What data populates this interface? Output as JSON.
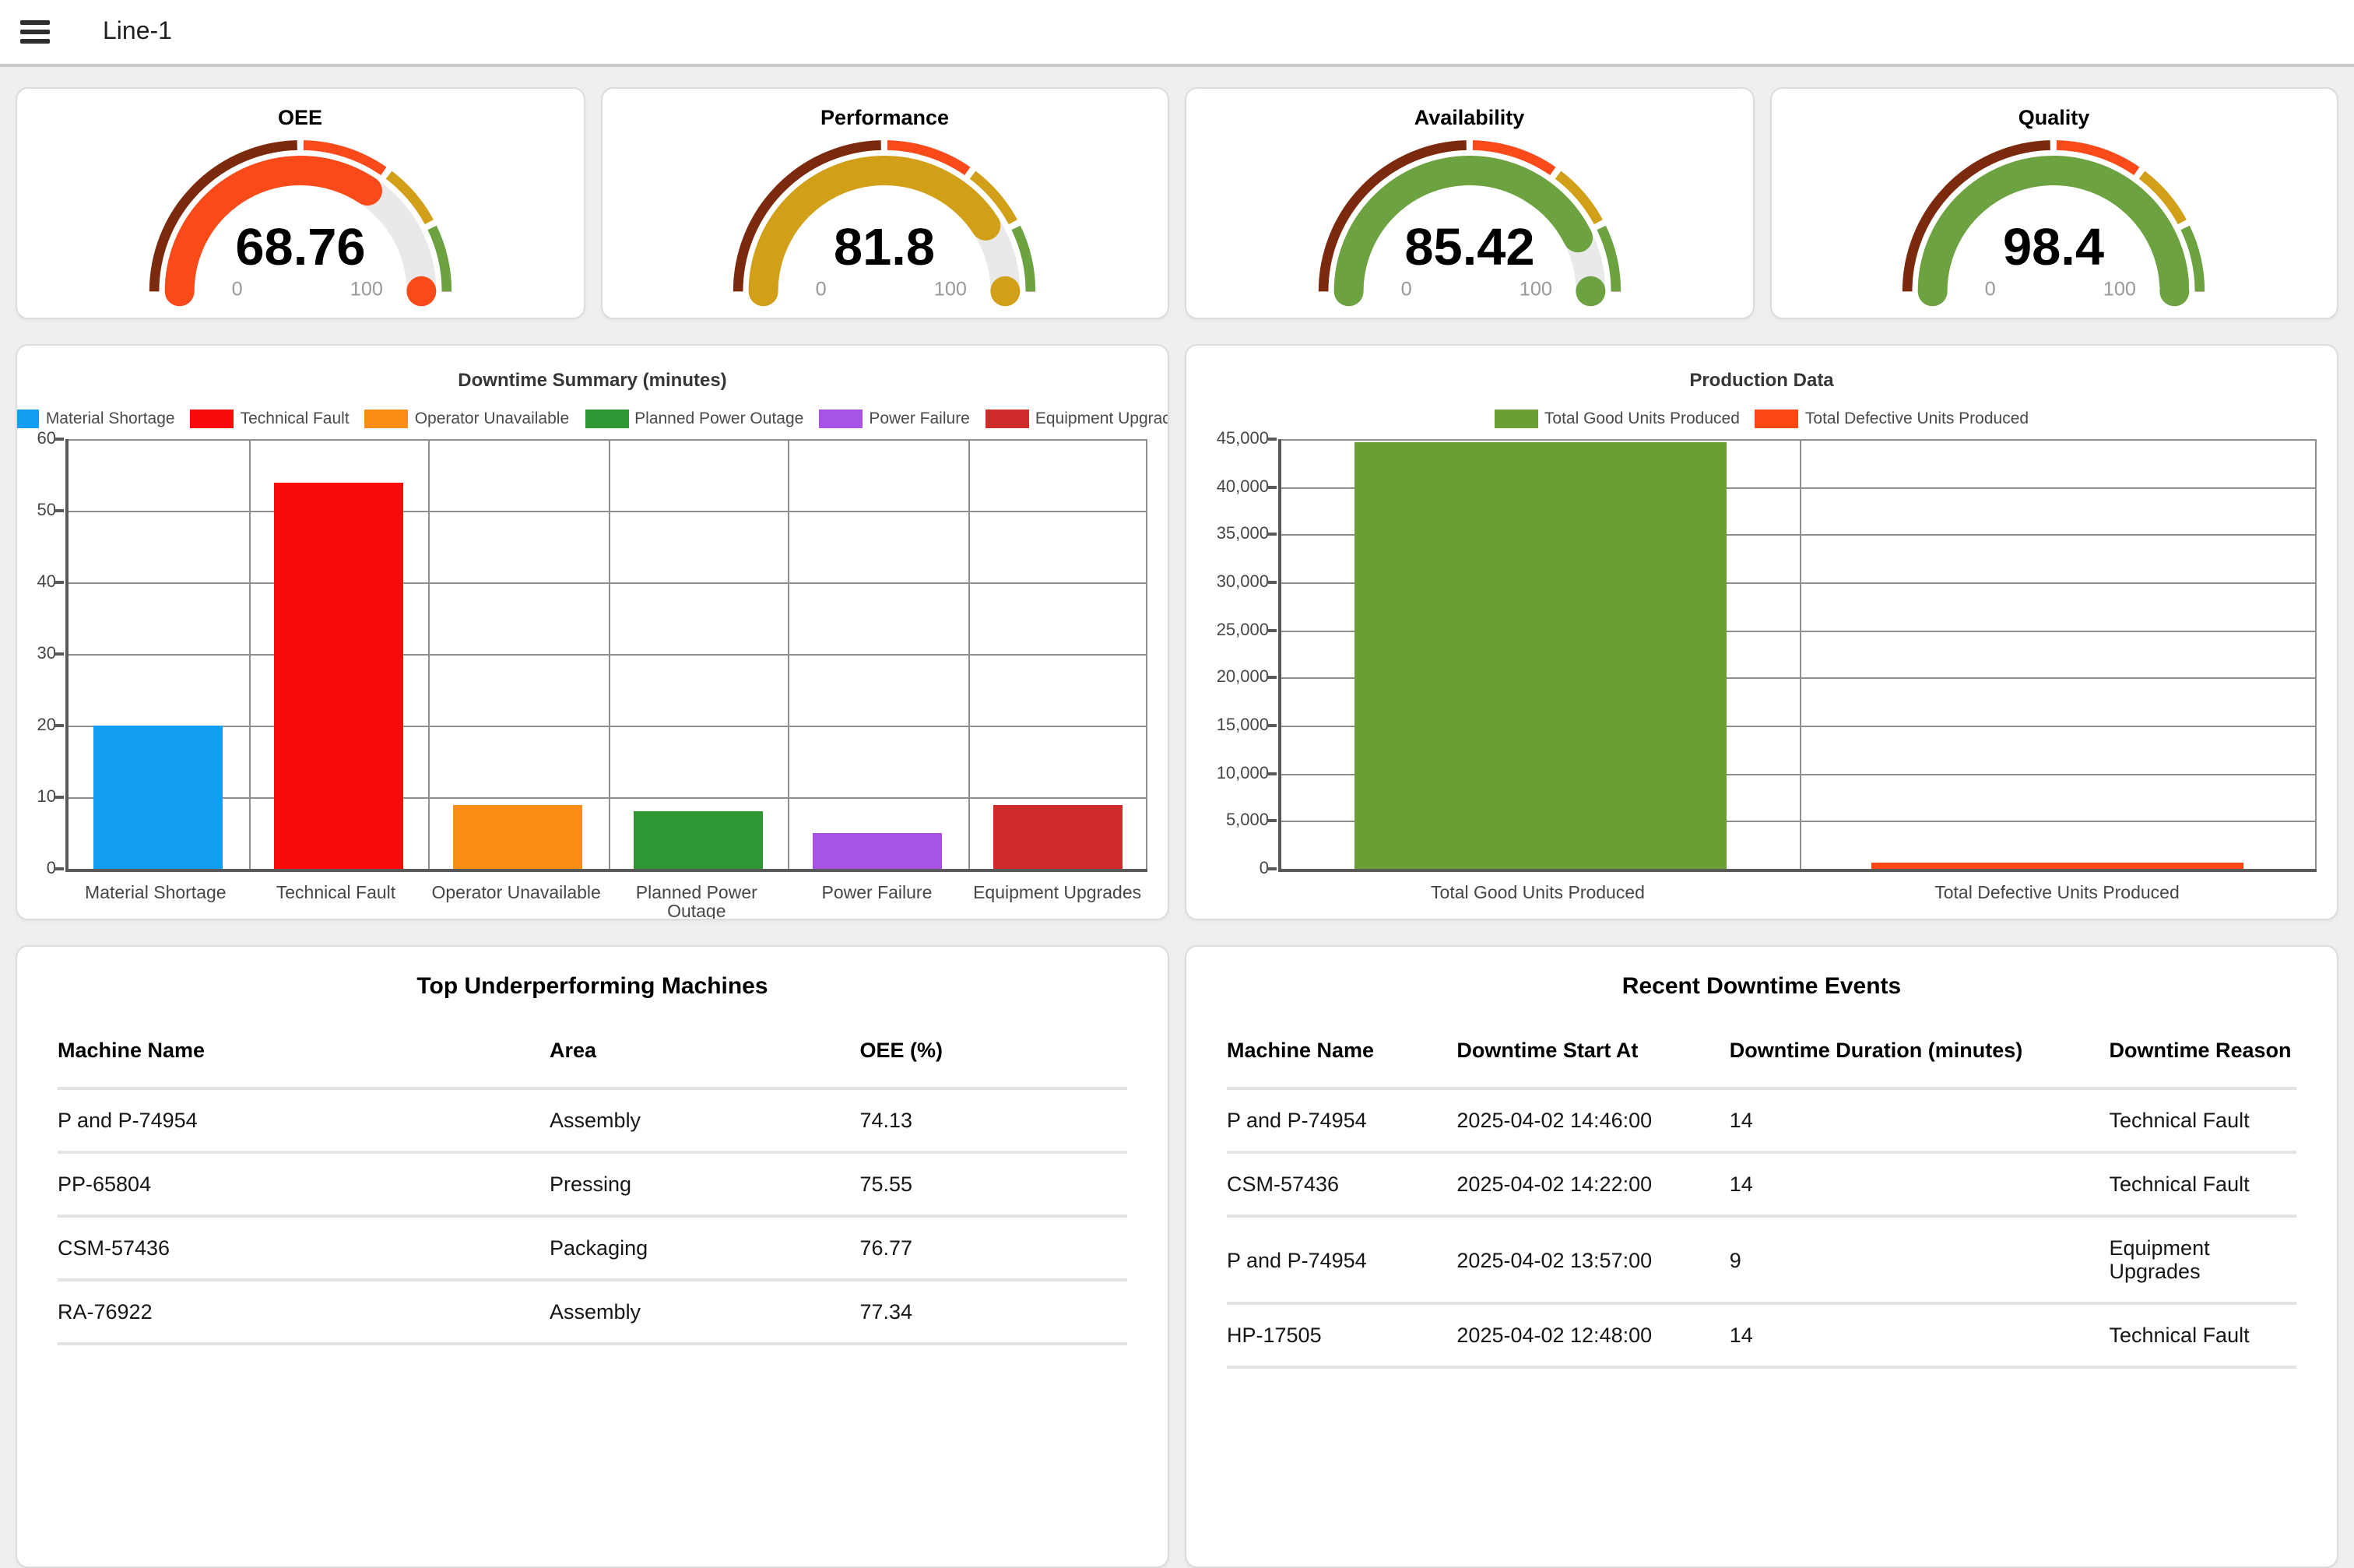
{
  "topbar": {
    "title": "Line-1"
  },
  "gauges": [
    {
      "title": "OEE",
      "value": "68.76",
      "num": 68.76,
      "fill_color": "#fb4a19"
    },
    {
      "title": "Performance",
      "value": "81.8",
      "num": 81.8,
      "fill_color": "#d2a018"
    },
    {
      "title": "Availability",
      "value": "85.42",
      "num": 85.42,
      "fill_color": "#6ca23f"
    },
    {
      "title": "Quality",
      "value": "98.4",
      "num": 98.4,
      "fill_color": "#6ca23f"
    }
  ],
  "gauge_scale": {
    "min_label": "0",
    "max_label": "100",
    "track_color": "#e9e9e9",
    "bands": [
      {
        "from": 0,
        "to": 50,
        "color": "#7b2a0d"
      },
      {
        "from": 50,
        "to": 70,
        "color": "#fb4a19"
      },
      {
        "from": 70,
        "to": 85,
        "color": "#d2a018"
      },
      {
        "from": 85,
        "to": 100,
        "color": "#6ca23f"
      }
    ]
  },
  "chart_data": [
    {
      "type": "bar",
      "title": "Downtime Summary (minutes)",
      "categories": [
        "Material Shortage",
        "Technical Fault",
        "Operator Unavailable",
        "Planned Power Outage",
        "Power Failure",
        "Equipment Upgrades"
      ],
      "values": [
        20,
        54,
        9,
        8,
        5,
        9
      ],
      "colors": [
        "#119ef2",
        "#fa0a0a",
        "#fa8e14",
        "#2e9632",
        "#a653e6",
        "#d02b2b"
      ],
      "legend": [
        "Material Shortage",
        "Technical Fault",
        "Operator Unavailable",
        "Planned Power Outage",
        "Power Failure",
        "Equipment Upgrades"
      ],
      "legend_position": "top",
      "xlabel": "",
      "ylabel": "",
      "ylim": [
        0,
        60
      ],
      "yticks": [
        0,
        10,
        20,
        30,
        40,
        50,
        60
      ],
      "grid": true
    },
    {
      "type": "bar",
      "title": "Production Data",
      "categories": [
        "Total Good Units Produced",
        "Total Defective Units Produced"
      ],
      "values": [
        44700,
        700
      ],
      "colors": [
        "#6b9e35",
        "#fb4713"
      ],
      "legend": [
        "Total Good Units Produced",
        "Total Defective Units Produced"
      ],
      "legend_position": "top",
      "xlabel": "",
      "ylabel": "",
      "ylim": [
        0,
        45000
      ],
      "yticks": [
        0,
        5000,
        10000,
        15000,
        20000,
        25000,
        30000,
        35000,
        40000,
        45000
      ],
      "ytick_format": "thousands-comma",
      "grid": true
    }
  ],
  "tables": {
    "machines": {
      "title": "Top Underperforming Machines",
      "headers": [
        "Machine Name",
        "Area",
        "OEE (%)"
      ],
      "rows": [
        [
          "P and P-74954",
          "Assembly",
          "74.13"
        ],
        [
          "PP-65804",
          "Pressing",
          "75.55"
        ],
        [
          "CSM-57436",
          "Packaging",
          "76.77"
        ],
        [
          "RA-76922",
          "Assembly",
          "77.34"
        ]
      ]
    },
    "events": {
      "title": "Recent Downtime Events",
      "headers": [
        "Machine Name",
        "Downtime Start At",
        "Downtime Duration (minutes)",
        "Downtime Reason"
      ],
      "rows": [
        [
          "P and P-74954",
          "2025-04-02 14:46:00",
          "14",
          "Technical Fault"
        ],
        [
          "CSM-57436",
          "2025-04-02 14:22:00",
          "14",
          "Technical Fault"
        ],
        [
          "P and P-74954",
          "2025-04-02 13:57:00",
          "9",
          "Equipment Upgrades"
        ],
        [
          "HP-17505",
          "2025-04-02 12:48:00",
          "14",
          "Technical Fault"
        ]
      ]
    }
  }
}
